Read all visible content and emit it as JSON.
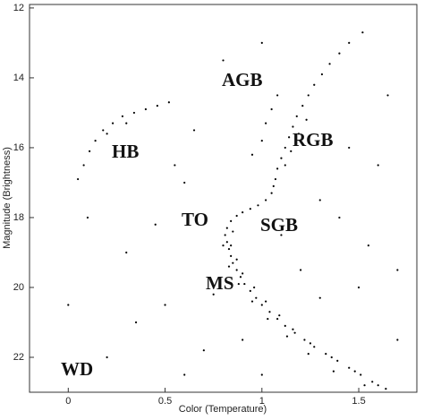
{
  "chart_data": {
    "type": "scatter",
    "xlabel": "Color (Temperature)",
    "ylabel": "Magnitude (Brightness)",
    "xlim": [
      -0.2,
      1.8
    ],
    "xticks": [
      0,
      0.5,
      1,
      1.5
    ],
    "ylim": [
      11.9,
      23
    ],
    "yticks": [
      12,
      14,
      16,
      18,
      20,
      22
    ],
    "invert_y": true,
    "color": "#000000",
    "annotations": [
      "AGB",
      "HB",
      "RGB",
      "TO",
      "SGB",
      "MS",
      "WD"
    ],
    "x": [
      0.82,
      0.81,
      0.82,
      0.83,
      0.84,
      0.85,
      0.87,
      0.89,
      0.91,
      0.94,
      0.97,
      1.0,
      1.04,
      1.08,
      1.12,
      1.17,
      1.22,
      1.27,
      1.33,
      1.39,
      1.45,
      1.51,
      1.57,
      1.64,
      0.85,
      0.84,
      0.87,
      0.9,
      0.96,
      1.02,
      1.09,
      1.16,
      1.25,
      1.36,
      1.48,
      1.6,
      0.8,
      0.83,
      0.88,
      0.95,
      1.03,
      1.13,
      1.24,
      1.37,
      1.53,
      0.84,
      0.87,
      0.9,
      0.94,
      0.98,
      1.02,
      1.05,
      1.06,
      1.07,
      1.08,
      1.1,
      1.12,
      1.14,
      1.16,
      1.18,
      1.21,
      1.24,
      1.27,
      1.31,
      1.35,
      1.4,
      1.45,
      1.52,
      1.12,
      1.15,
      1.19,
      1.23,
      1.0,
      1.02,
      1.05,
      1.08,
      0.05,
      0.08,
      0.11,
      0.14,
      0.18,
      0.23,
      0.28,
      0.34,
      0.4,
      0.46,
      0.52,
      0.2,
      0.3,
      0.3,
      0.5,
      0.6,
      0.7,
      1.4,
      1.6,
      1.7,
      1.5,
      0.2,
      0.0,
      0.65,
      1.3,
      1.55,
      0.75,
      1.0,
      0.45,
      1.2,
      1.3,
      1.1,
      0.6,
      0.9,
      1.7,
      0.35,
      1.45,
      0.55,
      0.8,
      1.0,
      1.65,
      0.1,
      0.95
    ],
    "y": [
      18.3,
      18.5,
      18.7,
      18.9,
      19.1,
      19.3,
      19.5,
      19.7,
      19.9,
      20.1,
      20.3,
      20.5,
      20.7,
      20.9,
      21.1,
      21.3,
      21.5,
      21.7,
      21.9,
      22.1,
      22.3,
      22.5,
      22.7,
      22.9,
      18.4,
      18.8,
      19.2,
      19.6,
      20.0,
      20.4,
      20.8,
      21.2,
      21.6,
      22.0,
      22.4,
      22.8,
      18.8,
      19.4,
      19.9,
      20.4,
      20.9,
      21.4,
      21.9,
      22.4,
      22.8,
      18.1,
      17.95,
      17.85,
      17.75,
      17.65,
      17.5,
      17.3,
      17.1,
      16.9,
      16.6,
      16.3,
      16.0,
      15.7,
      15.4,
      15.1,
      14.8,
      14.5,
      14.2,
      13.9,
      13.6,
      13.3,
      13.0,
      12.7,
      16.5,
      16.1,
      15.6,
      15.2,
      15.8,
      15.3,
      14.9,
      14.5,
      16.9,
      16.5,
      16.1,
      15.8,
      15.5,
      15.3,
      15.1,
      15.0,
      14.9,
      14.8,
      14.7,
      15.6,
      15.3,
      19.0,
      20.5,
      17.0,
      21.8,
      18.0,
      16.5,
      19.5,
      20.0,
      22.0,
      20.5,
      15.5,
      17.5,
      18.8,
      20.2,
      22.5,
      18.2,
      19.5,
      20.3,
      18.5,
      22.5,
      21.5,
      21.5,
      21.0,
      16.0,
      16.5,
      13.5,
      13.0,
      14.5,
      18.0,
      16.2
    ]
  }
}
